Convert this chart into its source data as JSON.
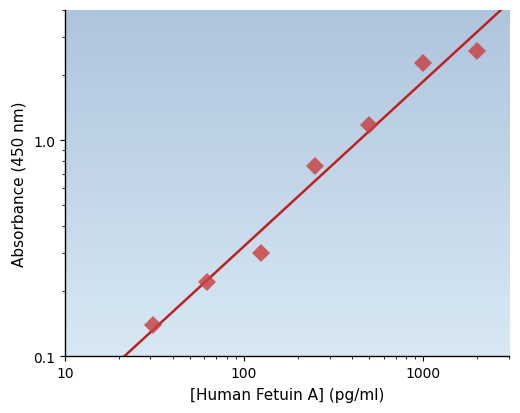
{
  "x_data": [
    31.25,
    62.5,
    125,
    250,
    500,
    1000,
    2000
  ],
  "y_data": [
    0.14,
    0.22,
    0.3,
    0.76,
    1.18,
    2.28,
    2.6
  ],
  "marker_color": "#C84040",
  "line_color": "#BB2222",
  "xlabel": "[Human Fetuin A] (pg/ml)",
  "ylabel": "Absorbance (450 nm)",
  "xlim": [
    10,
    3000
  ],
  "ylim": [
    0.1,
    4.0
  ],
  "bg_top_color": "#afc5dd",
  "bg_bottom_color": "#d8e8f4",
  "marker_size": 9,
  "marker_alpha": 0.82
}
